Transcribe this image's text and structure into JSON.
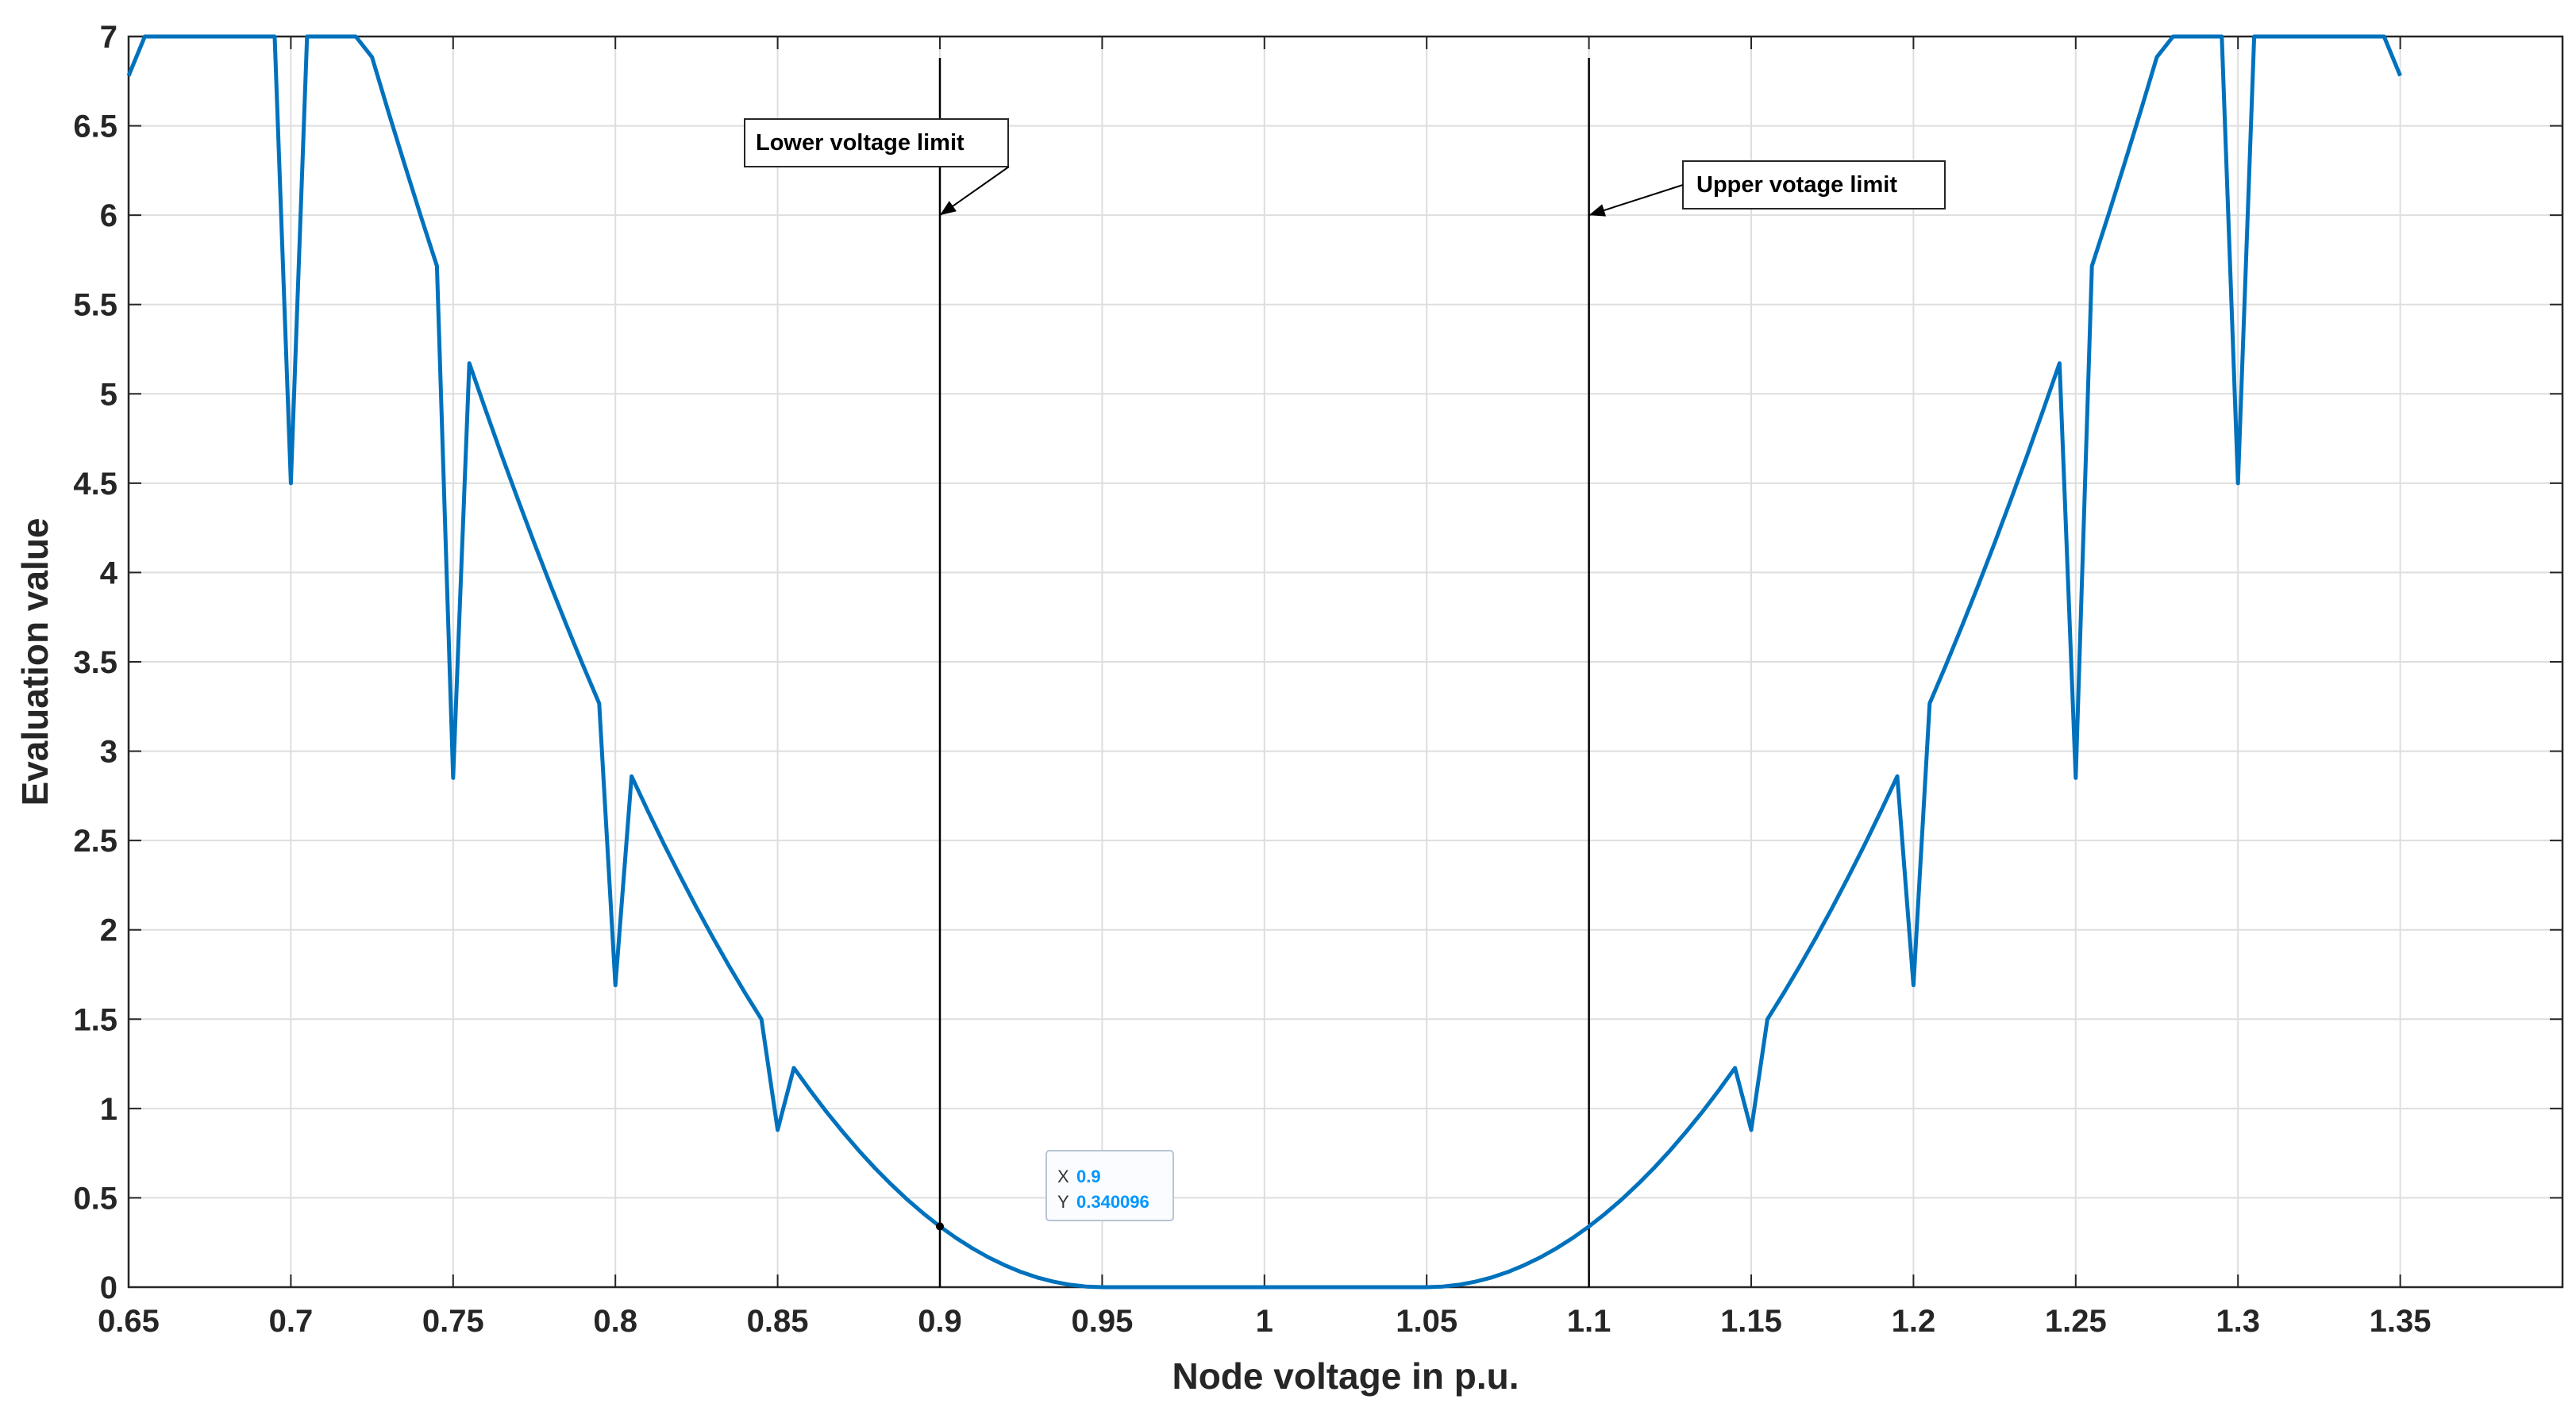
{
  "chart_data": {
    "type": "line",
    "xlabel": "Node voltage in p.u.",
    "ylabel": "Evaluation value",
    "xlim": [
      0.65,
      1.4
    ],
    "ylim": [
      0,
      7
    ],
    "grid": true,
    "x_ticks": [
      "0.65",
      "0.7",
      "0.75",
      "0.8",
      "0.85",
      "0.9",
      "0.95",
      "1",
      "1.05",
      "1.1",
      "1.15",
      "1.2",
      "1.25",
      "1.3",
      "1.35"
    ],
    "y_ticks": [
      "0",
      "0.5",
      "1",
      "1.5",
      "2",
      "2.5",
      "3",
      "3.5",
      "4",
      "4.5",
      "5",
      "5.5",
      "6",
      "6.5",
      "7"
    ],
    "series": [
      {
        "color": "#0072BD",
        "x": [
          0.7,
          0.75,
          0.8,
          0.85,
          0.9,
          0.95,
          1.0,
          1.05,
          1.1,
          1.15,
          1.2,
          1.25,
          1.3,
          1.35
        ],
        "y": [
          4.5,
          2.85,
          1.69,
          0.88,
          0.34,
          0.0,
          0.0,
          0.0,
          0.34,
          0.88,
          1.69,
          2.85,
          4.5,
          6.78
        ],
        "start": {
          "x": 0.65,
          "y": 6.78
        }
      }
    ],
    "vertical_lines": [
      {
        "x": 0.9,
        "y_top": 6.88,
        "color": "#000000"
      },
      {
        "x": 1.1,
        "y_top": 6.88,
        "color": "#000000"
      }
    ],
    "annotations": [
      {
        "text": "Lower voltage limit",
        "arrow_to": {
          "x": 0.9,
          "y": 6.0
        }
      },
      {
        "text": "Upper votage limit",
        "arrow_to": {
          "x": 1.1,
          "y": 6.0
        }
      }
    ],
    "datatip": {
      "x_label": "X",
      "y_label": "Y",
      "x_value": "0.9",
      "y_value": "0.340096",
      "point": {
        "x": 0.9,
        "y": 0.340096
      },
      "value_color": "#0096FF"
    }
  }
}
